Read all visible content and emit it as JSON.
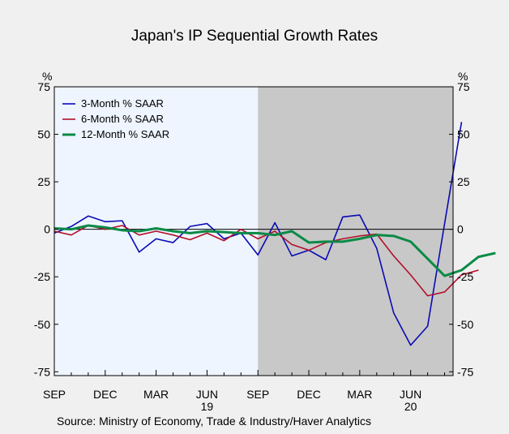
{
  "chart_data": {
    "type": "line",
    "title": "Japan's IP Sequential Growth Rates",
    "left_unit": "%",
    "right_unit": "%",
    "source": "Source:  Ministry of Economy, Trade & Industry/Haver Analytics",
    "ylim": [
      -77,
      75
    ],
    "yticks": [
      75,
      50,
      25,
      0,
      -25,
      -50,
      -75
    ],
    "xlim": [
      0,
      23.5
    ],
    "x_tick_labels": [
      {
        "label": "SEP",
        "x": 0
      },
      {
        "label": "DEC",
        "x": 3
      },
      {
        "label": "MAR",
        "x": 6
      },
      {
        "label": "JUN",
        "x": 9
      },
      {
        "label": "SEP",
        "x": 12
      },
      {
        "label": "DEC",
        "x": 15
      },
      {
        "label": "MAR",
        "x": 18
      },
      {
        "label": "JUN",
        "x": 21
      }
    ],
    "year_labels": [
      {
        "label": "19",
        "x": 9
      },
      {
        "label": "20",
        "x": 21
      }
    ],
    "shaded_regions": [
      {
        "from": -0.5,
        "to": 12,
        "color": "#eef5ff"
      },
      {
        "from": 12,
        "to": 23.5,
        "color": "#c8c8c8"
      }
    ],
    "zero_line": true,
    "legend_position": "top-left",
    "series": [
      {
        "name": "3-Month % SAAR",
        "color": "#0a0ab4",
        "values": [
          -2,
          1.5,
          7,
          4,
          4.5,
          -12,
          -5,
          -7,
          1.5,
          3,
          -5,
          -2,
          -13.5,
          3.5,
          -14,
          -11,
          -16,
          6.5,
          7.5,
          -10,
          -44,
          -61,
          -51,
          3,
          56.5
        ]
      },
      {
        "name": "6-Month % SAAR",
        "color": "#b3102a",
        "values": [
          -1,
          -3,
          2,
          0,
          2,
          -3,
          -1,
          -3,
          -5.5,
          -2,
          -6,
          0,
          -5,
          -1,
          -8,
          -11,
          -7,
          -5,
          -3.5,
          -2.5,
          -14,
          -24,
          -35,
          -33,
          -24,
          -21.5
        ]
      },
      {
        "name": "12-Month % SAAR",
        "color": "#0a8a46",
        "values": [
          0.5,
          0,
          2,
          1,
          -0.5,
          -1,
          0.5,
          -1,
          -2,
          -1,
          -1.5,
          -2,
          -2,
          -3,
          -1,
          -7,
          -6.5,
          -6.5,
          -5,
          -3,
          -3.5,
          -6.5,
          -15.5,
          -24.5,
          -21.5,
          -14.5,
          -12.5
        ]
      }
    ]
  }
}
